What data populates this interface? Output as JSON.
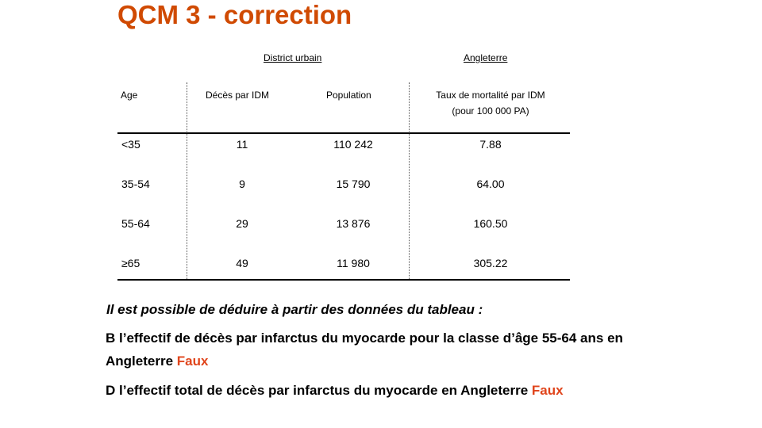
{
  "title": "QCM 3 - correction",
  "table": {
    "group_headers": {
      "district": "District urbain",
      "angleterre": "Angleterre"
    },
    "columns": {
      "age": "Age",
      "deces": "Décès par IDM",
      "population": "Population",
      "taux_line1": "Taux de mortalité par IDM",
      "taux_line2": "(pour 100 000 PA)"
    },
    "rows": [
      {
        "age": "<35",
        "deces": "11",
        "population": "110 242",
        "taux": "7.88"
      },
      {
        "age": "35-54",
        "deces": "9",
        "population": "15 790",
        "taux": "64.00"
      },
      {
        "age": "55-64",
        "deces": "29",
        "population": "13 876",
        "taux": "160.50"
      },
      {
        "age": "≥65",
        "deces": "49",
        "population": "11 980",
        "taux": "305.22"
      }
    ]
  },
  "question": "Il est possible de déduire à partir des données du tableau :",
  "answers": [
    {
      "text": "B l’effectif de décès par infarctus du myocarde pour la classe d’âge 55-64 ans en Angleterre",
      "verdict": "Faux"
    },
    {
      "text": "D l’effectif total de décès par infarctus du myocarde en Angleterre",
      "verdict": "Faux"
    }
  ],
  "colors": {
    "title": "#d04a02",
    "verdict": "#e0451c"
  }
}
